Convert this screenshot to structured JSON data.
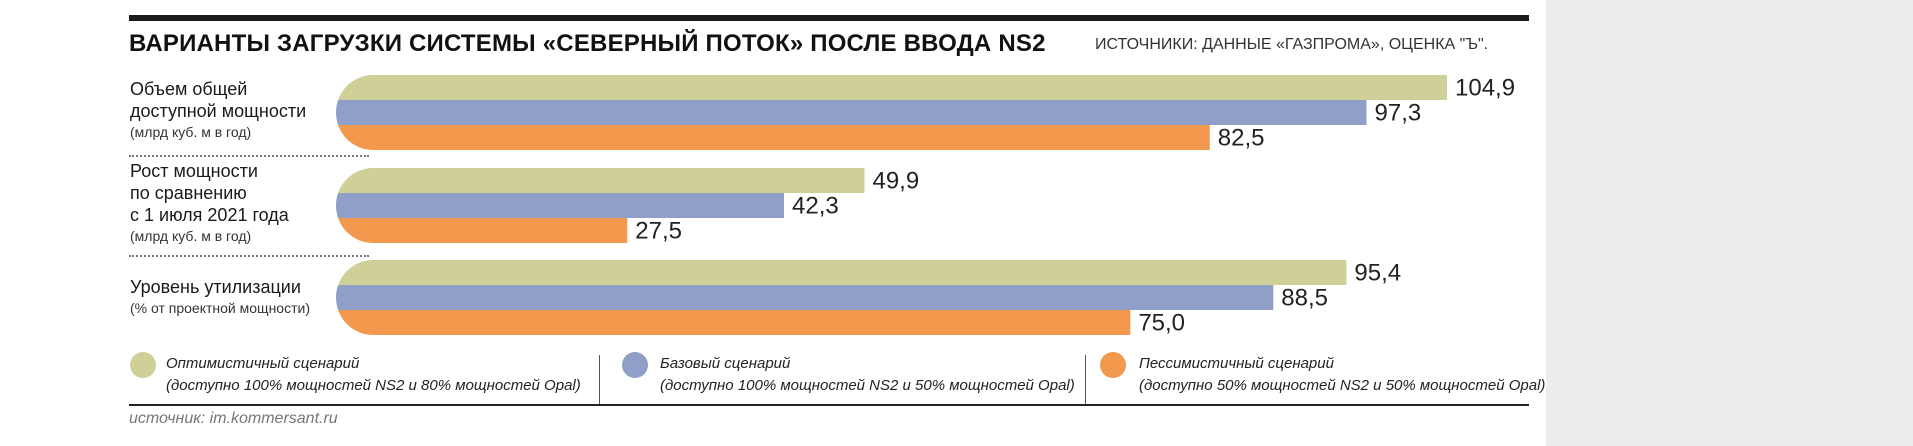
{
  "title": "ВАРИАНТЫ ЗАГРУЗКИ СИСТЕМЫ «СЕВЕРНЫЙ ПОТОК» ПОСЛЕ ВВОДА NS2",
  "source_top": "ИСТОЧНИКИ: ДАННЫЕ «ГАЗПРОМА», ОЦЕНКА \"Ъ\".",
  "footer_source": "источник: im.kommersant.ru",
  "categories": [
    {
      "lines": [
        "Объем общей",
        "доступной мощности"
      ],
      "unit": "(млрд куб. м в год)"
    },
    {
      "lines": [
        "Рост мощности",
        "по сравнению",
        "с 1 июля 2021 года"
      ],
      "unit": "(млрд куб. м в год)"
    },
    {
      "lines": [
        "Уровень утилизации"
      ],
      "unit": "(% от проектной мощности)"
    }
  ],
  "legend": [
    {
      "line1": "Оптимистичный сценарий",
      "line2": "(доступно 100% мощностей NS2 и 80% мощностей Opal)",
      "color": "#cfcf98"
    },
    {
      "line1": "Базовый сценарий",
      "line2": "(доступно 100% мощностей NS2 и 50% мощностей Opal)",
      "color": "#8f9fc8"
    },
    {
      "line1": "Пессимистичный сценарий",
      "line2": "(доступно 50% мощностей NS2 и 50% мощностей Opal)",
      "color": "#f2994e"
    }
  ],
  "chart_data": {
    "type": "bar",
    "orientation": "horizontal",
    "categories": [
      "Объем общей доступной мощности (млрд куб. м в год)",
      "Рост мощности по сравнению с 1 июля 2021 года (млрд куб. м в год)",
      "Уровень утилизации (% от проектной мощности)"
    ],
    "series": [
      {
        "name": "Оптимистичный сценарий",
        "values": [
          104.9,
          49.9,
          95.4
        ],
        "labels": [
          "104,9",
          "49,9",
          "95,4"
        ],
        "color": "#cfcf98"
      },
      {
        "name": "Базовый сценарий",
        "values": [
          97.3,
          42.3,
          88.5
        ],
        "labels": [
          "97,3",
          "42,3",
          "88,5"
        ],
        "color": "#8f9fc8"
      },
      {
        "name": "Пессимистичный сценарий",
        "values": [
          82.5,
          27.5,
          75.0
        ],
        "labels": [
          "82,5",
          "27,5",
          "75,0"
        ],
        "color": "#f2994e"
      }
    ],
    "xlim": [
      0,
      104.9
    ],
    "grid": false,
    "legend_position": "bottom"
  }
}
